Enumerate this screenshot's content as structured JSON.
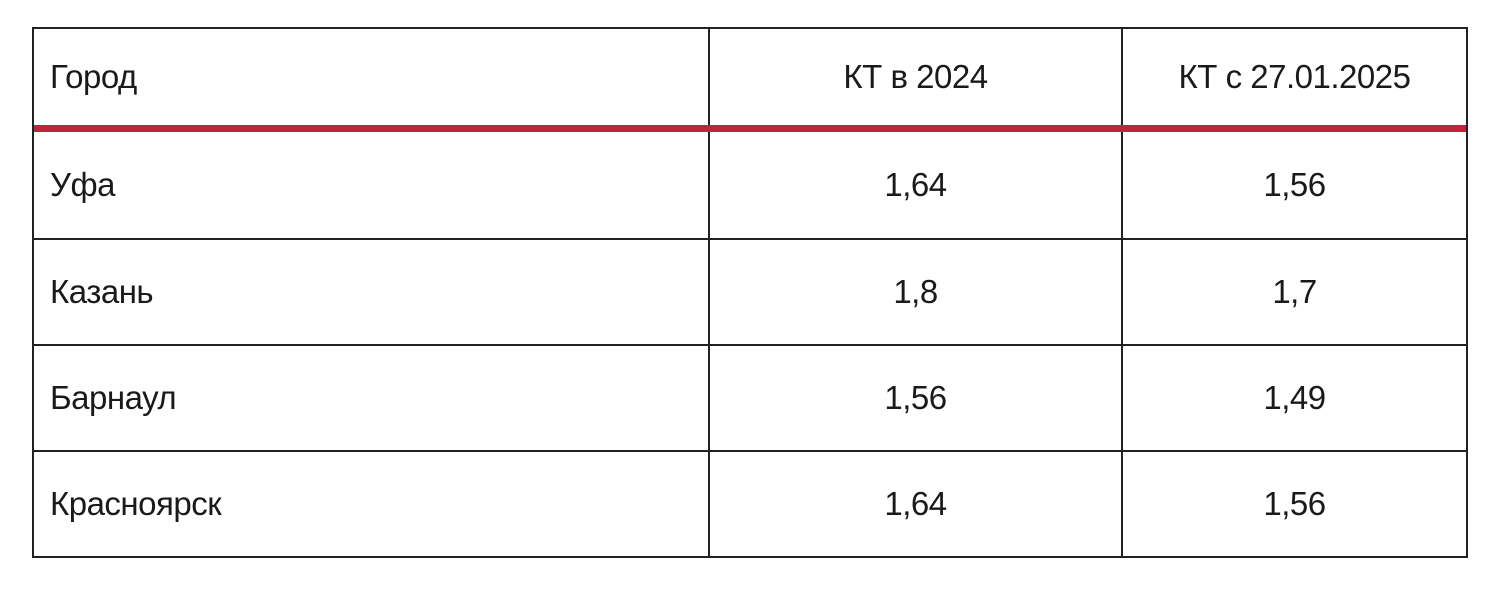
{
  "table": {
    "header": [
      "Город",
      "КТ в 2024",
      "КТ с 27.01.2025"
    ],
    "rows": [
      [
        "Уфа",
        "1,64",
        "1,56"
      ],
      [
        "Казань",
        "1,8",
        "1,7"
      ],
      [
        "Барнаул",
        "1,56",
        "1,49"
      ],
      [
        "Красноярск",
        "1,64",
        "1,56"
      ]
    ]
  }
}
